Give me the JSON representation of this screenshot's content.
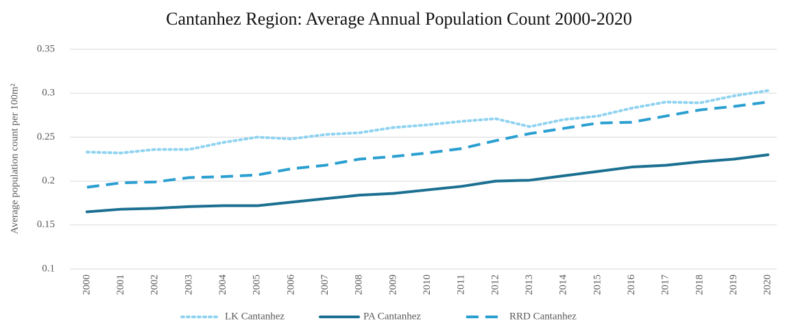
{
  "chart_data": {
    "type": "line",
    "title": "Cantanhez Region: Average Annual Population Count 2000-2020",
    "y_label": "Average population count per 100m²",
    "categories": [
      "2000",
      "2001",
      "2002",
      "2003",
      "2004",
      "2005",
      "2006",
      "2007",
      "2008",
      "2009",
      "2010",
      "2011",
      "2012",
      "2013",
      "2014",
      "2015",
      "2016",
      "2017",
      "2018",
      "2019",
      "2020"
    ],
    "series": [
      {
        "name": "LK Cantanhez",
        "color": "#8fd3f0",
        "dash": "dotted",
        "values": [
          0.233,
          0.232,
          0.236,
          0.236,
          0.244,
          0.25,
          0.248,
          0.253,
          0.255,
          0.261,
          0.264,
          0.268,
          0.271,
          0.262,
          0.27,
          0.274,
          0.283,
          0.29,
          0.289,
          0.297,
          0.303
        ]
      },
      {
        "name": "PA Cantanhez",
        "color": "#1b6f91",
        "dash": "solid",
        "values": [
          0.165,
          0.168,
          0.169,
          0.171,
          0.172,
          0.172,
          0.176,
          0.18,
          0.184,
          0.186,
          0.19,
          0.194,
          0.2,
          0.201,
          0.206,
          0.211,
          0.216,
          0.218,
          0.222,
          0.225,
          0.23
        ]
      },
      {
        "name": "RRD Cantanhez",
        "color": "#2a9fd0",
        "dash": "dashed",
        "values": [
          0.193,
          0.198,
          0.199,
          0.204,
          0.205,
          0.207,
          0.214,
          0.218,
          0.225,
          0.228,
          0.232,
          0.237,
          0.246,
          0.254,
          0.26,
          0.266,
          0.267,
          0.274,
          0.281,
          0.285,
          0.29
        ]
      }
    ],
    "ylim": [
      0.1,
      0.35
    ],
    "yticks": [
      0.1,
      0.15,
      0.2,
      0.25,
      0.3,
      0.35
    ],
    "grid": true,
    "legend": "bottom"
  }
}
